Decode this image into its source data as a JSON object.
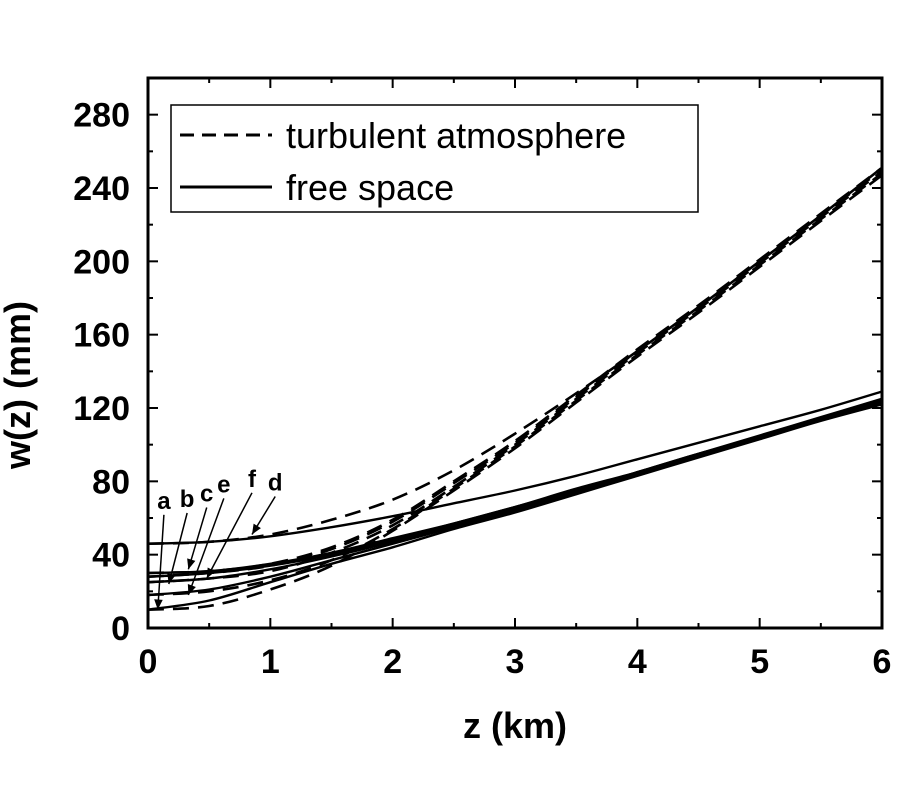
{
  "chart_data": {
    "type": "line",
    "xlabel": "z (km)",
    "ylabel": "w(z) (mm)",
    "xlim": [
      0,
      6
    ],
    "ylim": [
      0,
      300
    ],
    "xticks": [
      0,
      1,
      2,
      3,
      4,
      5,
      6
    ],
    "yticks": [
      0,
      40,
      80,
      120,
      160,
      200,
      240,
      280
    ],
    "grid": false,
    "legend": {
      "placement": "top-left",
      "entries": [
        {
          "label": "turbulent atmosphere",
          "style": "dashed"
        },
        {
          "label": "free space",
          "style": "solid"
        }
      ]
    },
    "series": [
      {
        "name": "turbulent atmosphere",
        "curve": "a",
        "style": "dashed",
        "x": [
          0,
          0.5,
          1,
          1.5,
          2,
          2.5,
          3,
          3.5,
          4,
          4.5,
          5,
          5.5,
          6
        ],
        "y": [
          10,
          12,
          21,
          34,
          53,
          75,
          98,
          123,
          148,
          172,
          197,
          222,
          247
        ]
      },
      {
        "name": "turbulent atmosphere",
        "curve": "b",
        "style": "dashed",
        "x": [
          0,
          0.5,
          1,
          1.5,
          2,
          2.5,
          3,
          3.5,
          4,
          4.5,
          5,
          5.5,
          6
        ],
        "y": [
          18,
          20,
          26,
          37,
          54,
          76,
          99,
          124,
          149,
          173,
          198,
          223,
          248
        ]
      },
      {
        "name": "turbulent atmosphere",
        "curve": "c",
        "style": "dashed",
        "x": [
          0,
          0.5,
          1,
          1.5,
          2,
          2.5,
          3,
          3.5,
          4,
          4.5,
          5,
          5.5,
          6
        ],
        "y": [
          25,
          27,
          31,
          41,
          56,
          77,
          100,
          125,
          150,
          174,
          199,
          224,
          249
        ]
      },
      {
        "name": "turbulent atmosphere",
        "curve": "e",
        "style": "dashed",
        "x": [
          0,
          0.5,
          1,
          1.5,
          2,
          2.5,
          3,
          3.5,
          4,
          4.5,
          5,
          5.5,
          6
        ],
        "y": [
          28,
          30,
          34,
          43,
          58,
          79,
          101,
          126,
          151,
          175,
          200,
          225,
          250
        ]
      },
      {
        "name": "turbulent atmosphere",
        "curve": "f",
        "style": "dashed",
        "x": [
          0,
          0.5,
          1,
          1.5,
          2,
          2.5,
          3,
          3.5,
          4,
          4.5,
          5,
          5.5,
          6
        ],
        "y": [
          30,
          31,
          35,
          44,
          59,
          80,
          102,
          127,
          152,
          176,
          201,
          226,
          251
        ]
      },
      {
        "name": "turbulent atmosphere",
        "curve": "d",
        "style": "dashed",
        "x": [
          0,
          0.5,
          1,
          1.5,
          2,
          2.5,
          3,
          3.5,
          4,
          4.5,
          5,
          5.5,
          6
        ],
        "y": [
          46,
          47,
          51,
          59,
          70,
          86,
          106,
          128,
          151,
          175,
          200,
          225,
          251
        ]
      },
      {
        "name": "free space",
        "curve": "a",
        "style": "solid",
        "x": [
          0,
          0.5,
          1,
          1.5,
          2,
          2.5,
          3,
          3.5,
          4,
          4.5,
          5,
          5.5,
          6
        ],
        "y": [
          10,
          15,
          25,
          35,
          44,
          54,
          63,
          73,
          83,
          93,
          103,
          113,
          122
        ]
      },
      {
        "name": "free space",
        "curve": "b",
        "style": "solid",
        "x": [
          0,
          0.5,
          1,
          1.5,
          2,
          2.5,
          3,
          3.5,
          4,
          4.5,
          5,
          5.5,
          6
        ],
        "y": [
          18,
          21,
          28,
          37,
          46,
          55,
          64,
          74,
          84,
          94,
          104,
          114,
          123
        ]
      },
      {
        "name": "free space",
        "curve": "c",
        "style": "solid",
        "x": [
          0,
          0.5,
          1,
          1.5,
          2,
          2.5,
          3,
          3.5,
          4,
          4.5,
          5,
          5.5,
          6
        ],
        "y": [
          25,
          27,
          32,
          39,
          47,
          56,
          65,
          75,
          84,
          94,
          104,
          114,
          124
        ]
      },
      {
        "name": "free space",
        "curve": "e",
        "style": "solid",
        "x": [
          0,
          0.5,
          1,
          1.5,
          2,
          2.5,
          3,
          3.5,
          4,
          4.5,
          5,
          5.5,
          6
        ],
        "y": [
          28,
          30,
          34,
          40,
          48,
          57,
          66,
          75,
          85,
          95,
          104,
          114,
          124
        ]
      },
      {
        "name": "free space",
        "curve": "f",
        "style": "solid",
        "x": [
          0,
          0.5,
          1,
          1.5,
          2,
          2.5,
          3,
          3.5,
          4,
          4.5,
          5,
          5.5,
          6
        ],
        "y": [
          30,
          31,
          35,
          41,
          49,
          57,
          66,
          76,
          85,
          95,
          105,
          115,
          125
        ]
      },
      {
        "name": "free space",
        "curve": "d",
        "style": "solid",
        "x": [
          0,
          0.5,
          1,
          1.5,
          2,
          2.5,
          3,
          3.5,
          4,
          4.5,
          5,
          5.5,
          6
        ],
        "y": [
          46,
          47,
          50,
          55,
          61,
          68,
          75,
          83,
          92,
          101,
          110,
          119,
          129
        ]
      }
    ],
    "curve_labels": [
      {
        "text": "a",
        "x": 0.13,
        "y": 65,
        "to_x": 0.08,
        "to_y": 10
      },
      {
        "text": "b",
        "x": 0.32,
        "y": 66,
        "to_x": 0.17,
        "to_y": 24
      },
      {
        "text": "c",
        "x": 0.48,
        "y": 69,
        "to_x": 0.33,
        "to_y": 32
      },
      {
        "text": "e",
        "x": 0.62,
        "y": 74,
        "to_x": 0.33,
        "to_y": 18
      },
      {
        "text": "f",
        "x": 0.85,
        "y": 77,
        "to_x": 0.48,
        "to_y": 27
      },
      {
        "text": "d",
        "x": 1.04,
        "y": 75,
        "to_x": 0.85,
        "to_y": 51
      }
    ]
  }
}
